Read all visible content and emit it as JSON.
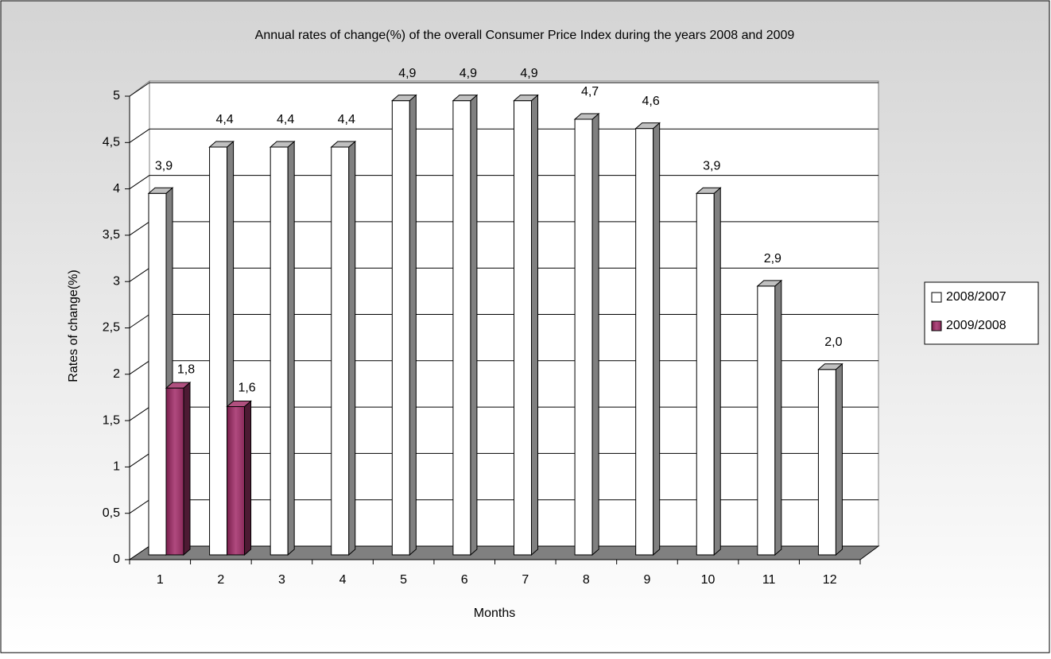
{
  "chart_data": {
    "type": "bar3d",
    "title": "Annual rates of change(%) of the overall Consumer Price Index during the years 2008 and 2009",
    "x_label": "Months",
    "y_label": "Rates of change(%)",
    "categories": [
      "1",
      "2",
      "3",
      "4",
      "5",
      "6",
      "7",
      "8",
      "9",
      "10",
      "11",
      "12"
    ],
    "series": [
      {
        "name": "2008/2007",
        "color": "#ffffff",
        "values": [
          3.9,
          4.4,
          4.4,
          4.4,
          4.9,
          4.9,
          4.9,
          4.7,
          4.6,
          3.9,
          2.9,
          2.0
        ],
        "value_labels": [
          "3,9",
          "4,4",
          "4,4",
          "4,4",
          "4,9",
          "4,9",
          "4,9",
          "4,7",
          "4,6",
          "3,9",
          "2,9",
          "2,0"
        ]
      },
      {
        "name": "2009/2008",
        "color": "#993366",
        "values": [
          1.8,
          1.6,
          null,
          null,
          null,
          null,
          null,
          null,
          null,
          null,
          null,
          null
        ],
        "value_labels": [
          "1,8",
          "1,6",
          null,
          null,
          null,
          null,
          null,
          null,
          null,
          null,
          null,
          null
        ]
      }
    ],
    "ylim": [
      0,
      5
    ],
    "yticks": [
      0,
      {
        "value": 0.5,
        "label": "0,5"
      },
      1,
      {
        "value": 1.5,
        "label": "1,5"
      },
      2,
      {
        "value": 2.5,
        "label": "2,5"
      },
      3,
      {
        "value": 3.5,
        "label": "3,5"
      },
      4,
      {
        "value": 4.5,
        "label": "4,5"
      },
      5
    ],
    "grid": true,
    "legend": "right"
  }
}
